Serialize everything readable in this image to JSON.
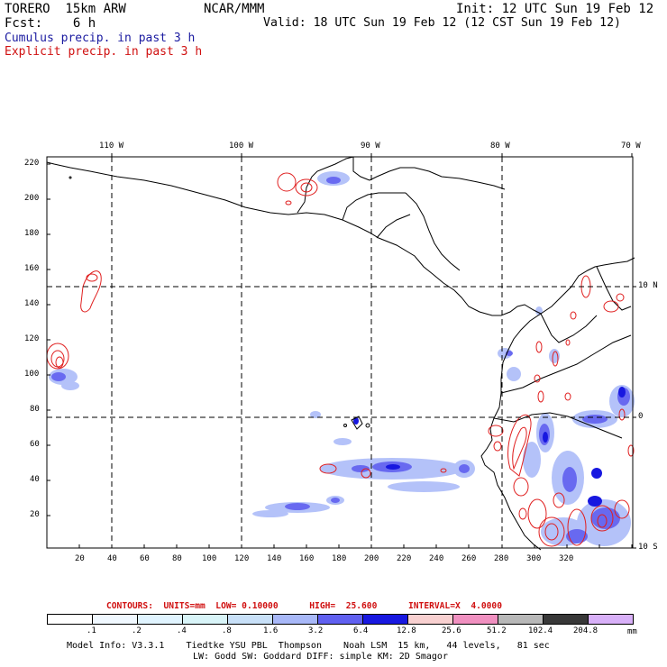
{
  "header": {
    "model": "TORERO  15km ARW",
    "center": "NCAR/MMM",
    "init": "Init: 12 UTC Sun 19 Feb 12",
    "fcst": "Fcst:    6 h",
    "valid": "Valid: 18 UTC Sun 19 Feb 12 (12 CST Sun 19 Feb 12)",
    "field_cumulus": "Cumulus precip. in past 3 h",
    "field_explicit": "Explicit precip. in past 3 h"
  },
  "map": {
    "lon_labels": [
      "110 W",
      "100 W",
      "90 W",
      "80 W",
      "70 W"
    ],
    "lat_labels": [
      "10 N",
      "0",
      "10 S"
    ],
    "y_ticks": [
      "220",
      "200",
      "180",
      "160",
      "140",
      "120",
      "100",
      "80",
      "60",
      "40",
      "20"
    ],
    "x_ticks": [
      "20",
      "40",
      "60",
      "80",
      "100",
      "120",
      "140",
      "160",
      "180",
      "200",
      "220",
      "240",
      "260",
      "280",
      "300",
      "320"
    ]
  },
  "contours": {
    "label": "CONTOURS:  UNITS=mm  LOW= 0.10000      HIGH=  25.600      INTERVAL=X  4.0000"
  },
  "colorbar": {
    "colors": [
      "#ffffff",
      "#f0f8ff",
      "#e0f4ff",
      "#d8f4f8",
      "#c8e0f8",
      "#a8b8f8",
      "#6060f0",
      "#1818e0",
      "#f8d0d0",
      "#f090c0",
      "#b8b8b8",
      "#383838",
      "#d8b0f8"
    ],
    "labels": [
      ".1",
      ".2",
      ".4",
      ".8",
      "1.6",
      "3.2",
      "6.4",
      "12.8",
      "25.6",
      "51.2",
      "102.4",
      "204.8"
    ],
    "unit": "mm"
  },
  "footer": {
    "line1": "Model Info: V3.3.1    Tiedtke YSU PBL  Thompson    Noah LSM  15 km,   44 levels,   81 sec",
    "line2": "LW: Godd SW: Goddard DIFF: simple KM: 2D Smagor"
  }
}
